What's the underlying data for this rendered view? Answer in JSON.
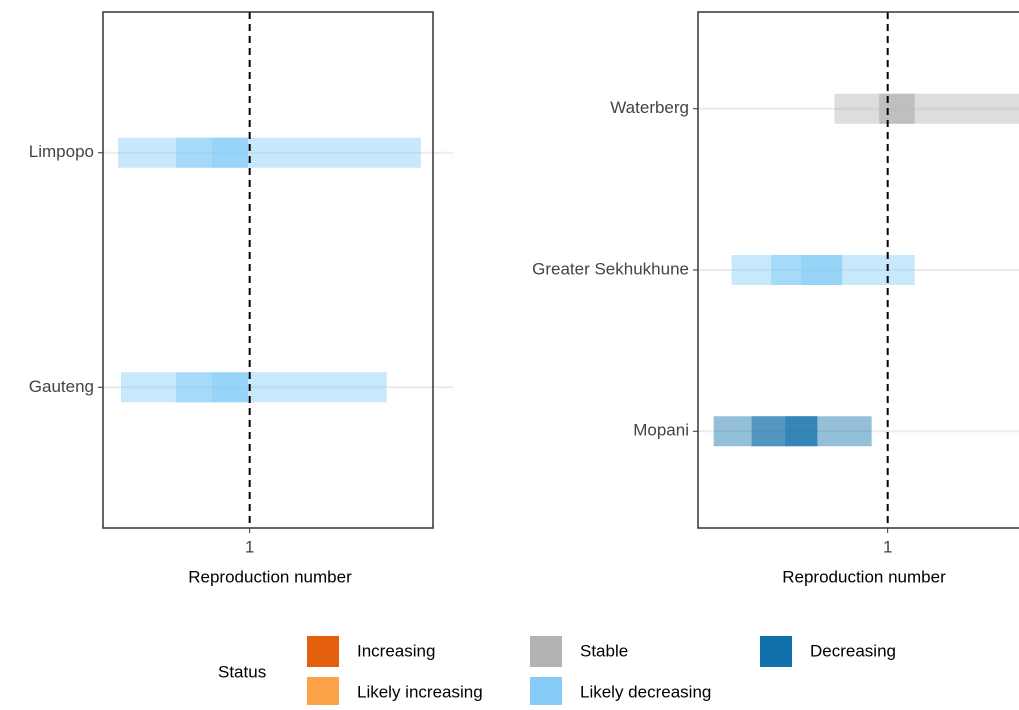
{
  "chart_data": [
    {
      "type": "interval",
      "x_label": "Reproduction number",
      "categories": [
        "Gauteng",
        "Limpopo"
      ],
      "colors": [
        "#84cbf7",
        "#84cbf7"
      ],
      "lower90": [
        0.649,
        0.641
      ],
      "upper90": [
        1.374,
        1.467
      ],
      "lower50": [
        0.799,
        0.799
      ],
      "upper50": [
        0.995,
        0.995
      ],
      "lower20": [
        0.897,
        0.897
      ],
      "upper20": [
        0.995,
        0.995
      ],
      "xlim": [
        0.6,
        1.5
      ],
      "xticks": [
        1
      ],
      "reference_line": 1
    },
    {
      "type": "interval",
      "x_label": "Reproduction number",
      "categories": [
        "Mopani",
        "Greater Sekhukhune",
        "Waterberg"
      ],
      "colors": [
        "#1170aa",
        "#84cbf7",
        "#b3b3b3"
      ],
      "lower90": [
        0.523,
        0.572,
        0.854
      ],
      "upper90": [
        0.956,
        1.074,
        1.384
      ],
      "lower50": [
        0.627,
        0.681,
        0.977
      ],
      "upper50": [
        0.807,
        0.875,
        1.074
      ],
      "lower20": [
        0.719,
        0.763,
        0.977
      ],
      "upper20": [
        0.807,
        0.875,
        1.074
      ],
      "xlim": [
        0.48,
        1.36
      ],
      "xticks": [
        1
      ],
      "reference_line": 1
    }
  ],
  "legend": {
    "title": "Status",
    "items": [
      {
        "name": "Increasing",
        "color": "#e35f0d"
      },
      {
        "name": "Likely increasing",
        "color": "#fca349"
      },
      {
        "name": "Stable",
        "color": "#b3b3b3"
      },
      {
        "name": "Likely decreasing",
        "color": "#84cbf7"
      },
      {
        "name": "Decreasing",
        "color": "#1170aa"
      }
    ]
  }
}
